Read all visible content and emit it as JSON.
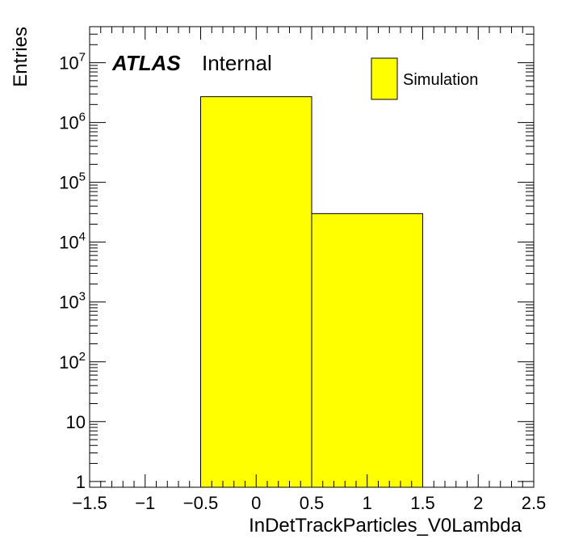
{
  "chart_data": {
    "type": "bar",
    "xlabel": "InDetTrackParticles_V0Lambda",
    "ylabel": "Entries",
    "xlim": [
      -1.5,
      2.5
    ],
    "ylim": [
      0.8,
      40000000
    ],
    "yscale": "log",
    "x_ticks": [
      -1.5,
      -1,
      -0.5,
      0,
      0.5,
      1,
      1.5,
      2,
      2.5
    ],
    "x_tick_labels": [
      "−1.5",
      "−1",
      "−0.5",
      "0",
      "0.5",
      "1",
      "1.5",
      "2",
      "2.5"
    ],
    "y_ticks": [
      {
        "value": 1,
        "base": "1",
        "exp": ""
      },
      {
        "value": 10,
        "base": "10",
        "exp": ""
      },
      {
        "value": 100,
        "base": "10",
        "exp": "2"
      },
      {
        "value": 1000,
        "base": "10",
        "exp": "3"
      },
      {
        "value": 10000,
        "base": "10",
        "exp": "4"
      },
      {
        "value": 100000,
        "base": "10",
        "exp": "5"
      },
      {
        "value": 1000000,
        "base": "10",
        "exp": "6"
      },
      {
        "value": 10000000,
        "base": "10",
        "exp": "7"
      }
    ],
    "bins": [
      {
        "low": -0.5,
        "high": 0.5,
        "value": 2700000
      },
      {
        "low": 0.5,
        "high": 1.5,
        "value": 30000
      }
    ],
    "series": [
      {
        "name": "Simulation",
        "color": "#ffff00"
      }
    ],
    "legend": {
      "placement": "top-right"
    },
    "annotations": {
      "experiment": "ATLAS",
      "status": "Internal"
    },
    "grid": false
  }
}
